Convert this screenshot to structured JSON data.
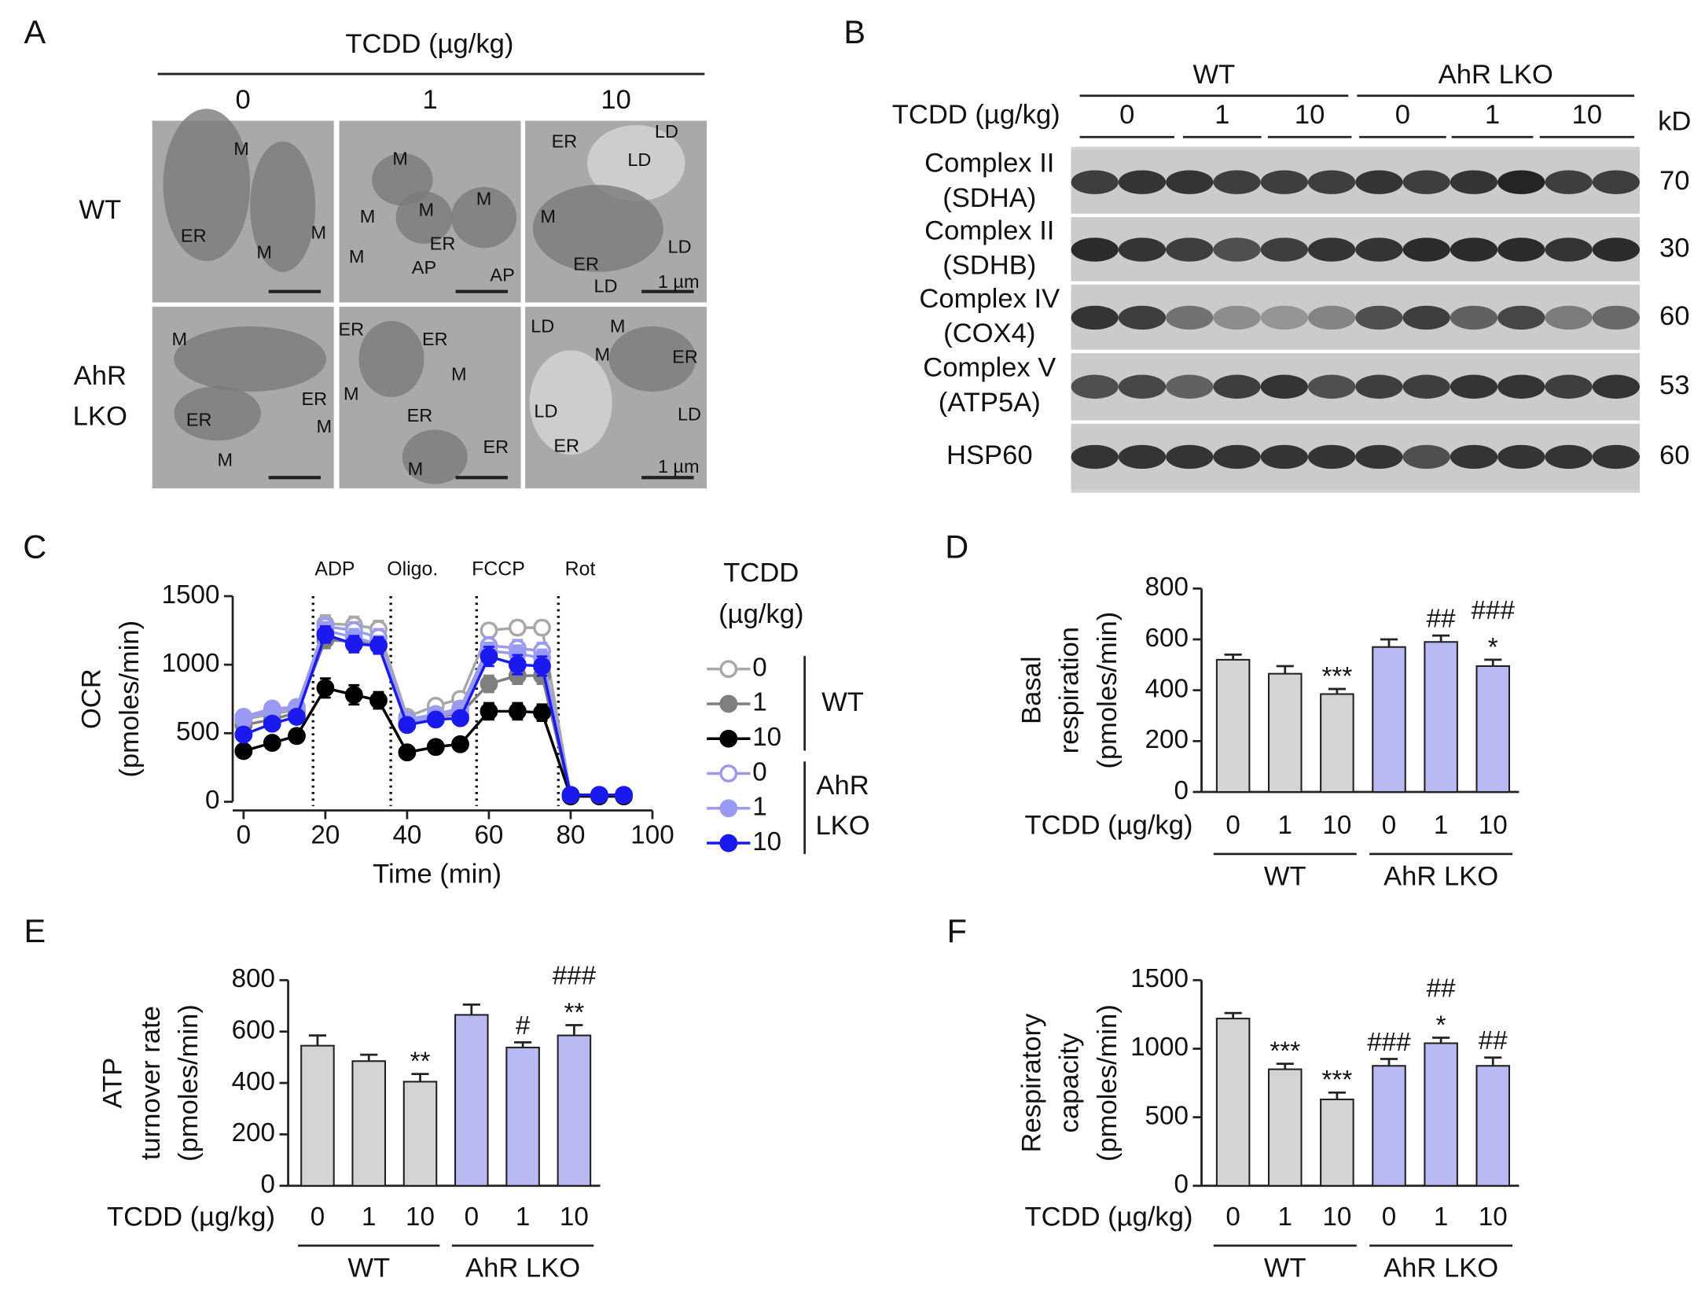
{
  "panel_letters": [
    "A",
    "B",
    "C",
    "D",
    "E",
    "F"
  ],
  "panel_a": {
    "treatment": "TCDD (µg/kg)",
    "doses": [
      "0",
      "1",
      "10"
    ],
    "genotypes": [
      [
        "WT"
      ],
      [
        "AhR",
        "LKO"
      ]
    ],
    "cell_labels": [
      [
        "M",
        "ER",
        "M",
        "M"
      ],
      [
        "M",
        "M",
        "M",
        "M",
        "ER",
        "M",
        "AP",
        "AP"
      ],
      [
        "ER",
        "LD",
        "LD",
        "M",
        "LD",
        "ER",
        "LD",
        "1 µm"
      ],
      [
        "M",
        "ER",
        "ER",
        "M",
        "M"
      ],
      [
        "ER",
        "ER",
        "M",
        "M",
        "ER",
        "ER",
        "M"
      ],
      [
        "LD",
        "M",
        "M",
        "ER",
        "LD",
        "LD",
        "ER",
        "1 µm"
      ]
    ]
  },
  "panel_b": {
    "groups": [
      "WT",
      "AhR LKO"
    ],
    "treatment": "TCDD (µg/kg)",
    "doses": [
      "0",
      "1",
      "10",
      "0",
      "1",
      "10"
    ],
    "unit": "kD",
    "rows": [
      {
        "name": [
          "Complex II",
          "(SDHA)"
        ],
        "kd": 70
      },
      {
        "name": [
          "Complex II",
          "(SDHB)"
        ],
        "kd": 30
      },
      {
        "name": [
          "Complex IV",
          "(COX4)"
        ],
        "kd": 60
      },
      {
        "name": [
          "Complex V",
          "(ATP5A)"
        ],
        "kd": 53
      },
      {
        "name": [
          "HSP60"
        ],
        "kd": 60
      }
    ]
  },
  "chart_data": [
    {
      "type": "line",
      "x": [
        0,
        7,
        13,
        20,
        27,
        33,
        40,
        47,
        53,
        60,
        67,
        73,
        80,
        87,
        93
      ],
      "xlim": [
        0,
        100
      ],
      "xticks": [
        0,
        20,
        40,
        60,
        80,
        100
      ],
      "ylim": [
        0,
        1500
      ],
      "yticks": [
        0,
        500,
        1000,
        1500
      ],
      "xlabel": "Time (min)",
      "ylabel": [
        "OCR",
        "(pmoles/min)"
      ],
      "legend_title": [
        "TCDD",
        "(µg/kg)"
      ],
      "legend_groups": [
        [
          "WT"
        ],
        [
          "AhR",
          "LKO"
        ]
      ],
      "injections": [
        {
          "x": 17,
          "label": "ADP"
        },
        {
          "x": 36,
          "label": "Oligo."
        },
        {
          "x": 57,
          "label": "FCCP"
        },
        {
          "x": 77,
          "label": "Rot"
        }
      ],
      "series": [
        {
          "name": "0",
          "color": "#a8a8a8",
          "marker": "open",
          "values": [
            600,
            640,
            670,
            1300,
            1290,
            1260,
            620,
            700,
            750,
            1250,
            1270,
            1270,
            50,
            50,
            50
          ],
          "errors": [
            50,
            40,
            40,
            60,
            60,
            60,
            40,
            40,
            40,
            50,
            50,
            50,
            10,
            10,
            10
          ]
        },
        {
          "name": "1",
          "color": "#7f7f7f",
          "marker": "filled",
          "values": [
            560,
            600,
            650,
            1180,
            1170,
            1150,
            580,
            620,
            640,
            860,
            920,
            920,
            40,
            40,
            40
          ],
          "errors": [
            40,
            40,
            40,
            60,
            60,
            60,
            40,
            40,
            40,
            60,
            60,
            60,
            10,
            10,
            10
          ]
        },
        {
          "name": "10",
          "color": "#000000",
          "marker": "filled",
          "values": [
            370,
            430,
            480,
            830,
            780,
            740,
            360,
            400,
            420,
            660,
            660,
            650,
            40,
            40,
            40
          ],
          "errors": [
            30,
            30,
            30,
            70,
            70,
            60,
            30,
            40,
            40,
            60,
            60,
            60,
            10,
            10,
            10
          ]
        },
        {
          "name": "0",
          "color": "#9b9bee",
          "marker": "open",
          "values": [
            600,
            660,
            690,
            1280,
            1250,
            1200,
            600,
            640,
            680,
            1140,
            1120,
            1100,
            50,
            50,
            50
          ],
          "errors": [
            40,
            40,
            40,
            60,
            60,
            60,
            40,
            40,
            40,
            60,
            60,
            60,
            10,
            10,
            10
          ]
        },
        {
          "name": "1",
          "color": "#9a9af5",
          "marker": "filled",
          "values": [
            620,
            680,
            690,
            1250,
            1200,
            1150,
            580,
            620,
            660,
            1100,
            1080,
            1050,
            50,
            50,
            50
          ],
          "errors": [
            40,
            40,
            40,
            60,
            60,
            60,
            40,
            40,
            40,
            60,
            60,
            60,
            10,
            10,
            10
          ]
        },
        {
          "name": "10",
          "color": "#1a1aee",
          "marker": "filled",
          "values": [
            490,
            570,
            620,
            1220,
            1150,
            1140,
            560,
            600,
            610,
            1060,
            1000,
            990,
            50,
            50,
            50
          ],
          "errors": [
            40,
            40,
            40,
            60,
            60,
            60,
            40,
            40,
            40,
            70,
            70,
            70,
            10,
            10,
            10
          ]
        }
      ]
    },
    {
      "type": "bar",
      "categories": [
        "0",
        "1",
        "10",
        "0",
        "1",
        "10"
      ],
      "groups": [
        "WT",
        "AhR LKO"
      ],
      "xlabel": "TCDD (µg/kg)",
      "ylabel": [
        "Basal",
        "respiration",
        "(pmoles/min)"
      ],
      "ylim": [
        0,
        800
      ],
      "yticks": [
        0,
        200,
        400,
        600,
        800
      ],
      "values": [
        520,
        465,
        385,
        570,
        590,
        495
      ],
      "errors": [
        20,
        30,
        20,
        30,
        25,
        25
      ],
      "colors": [
        "#d4d4d4",
        "#d4d4d4",
        "#d4d4d4",
        "#b9b9f3",
        "#b9b9f3",
        "#b9b9f3"
      ],
      "annotations": [
        [],
        [],
        [
          "***"
        ],
        [],
        [
          "##"
        ],
        [
          "###",
          "*"
        ]
      ]
    },
    {
      "type": "bar",
      "categories": [
        "0",
        "1",
        "10",
        "0",
        "1",
        "10"
      ],
      "groups": [
        "WT",
        "AhR LKO"
      ],
      "xlabel": "TCDD (µg/kg)",
      "ylabel": [
        "ATP",
        "turnover rate",
        "(pmoles/min)"
      ],
      "ylim": [
        0,
        800
      ],
      "yticks": [
        0,
        200,
        400,
        600,
        800
      ],
      "values": [
        545,
        485,
        405,
        665,
        538,
        585
      ],
      "errors": [
        40,
        25,
        30,
        40,
        20,
        40
      ],
      "colors": [
        "#d4d4d4",
        "#d4d4d4",
        "#d4d4d4",
        "#b9b9f3",
        "#b9b9f3",
        "#b9b9f3"
      ],
      "annotations": [
        [],
        [],
        [
          "**"
        ],
        [],
        [
          "#"
        ],
        [
          "###",
          "**"
        ]
      ]
    },
    {
      "type": "bar",
      "categories": [
        "0",
        "1",
        "10",
        "0",
        "1",
        "10"
      ],
      "groups": [
        "WT",
        "AhR LKO"
      ],
      "xlabel": "TCDD (µg/kg)",
      "ylabel": [
        "Respiratory",
        "capacity",
        "(pmoles/min)"
      ],
      "ylim": [
        0,
        1500
      ],
      "yticks": [
        0,
        500,
        1000,
        1500
      ],
      "values": [
        1220,
        850,
        630,
        875,
        1040,
        875
      ],
      "errors": [
        40,
        40,
        50,
        50,
        40,
        60
      ],
      "colors": [
        "#d4d4d4",
        "#d4d4d4",
        "#d4d4d4",
        "#b9b9f3",
        "#b9b9f3",
        "#b9b9f3"
      ],
      "annotations": [
        [],
        [
          "***"
        ],
        [
          "***"
        ],
        [
          "###"
        ],
        [
          "##",
          "*"
        ],
        [
          "##"
        ]
      ]
    }
  ]
}
